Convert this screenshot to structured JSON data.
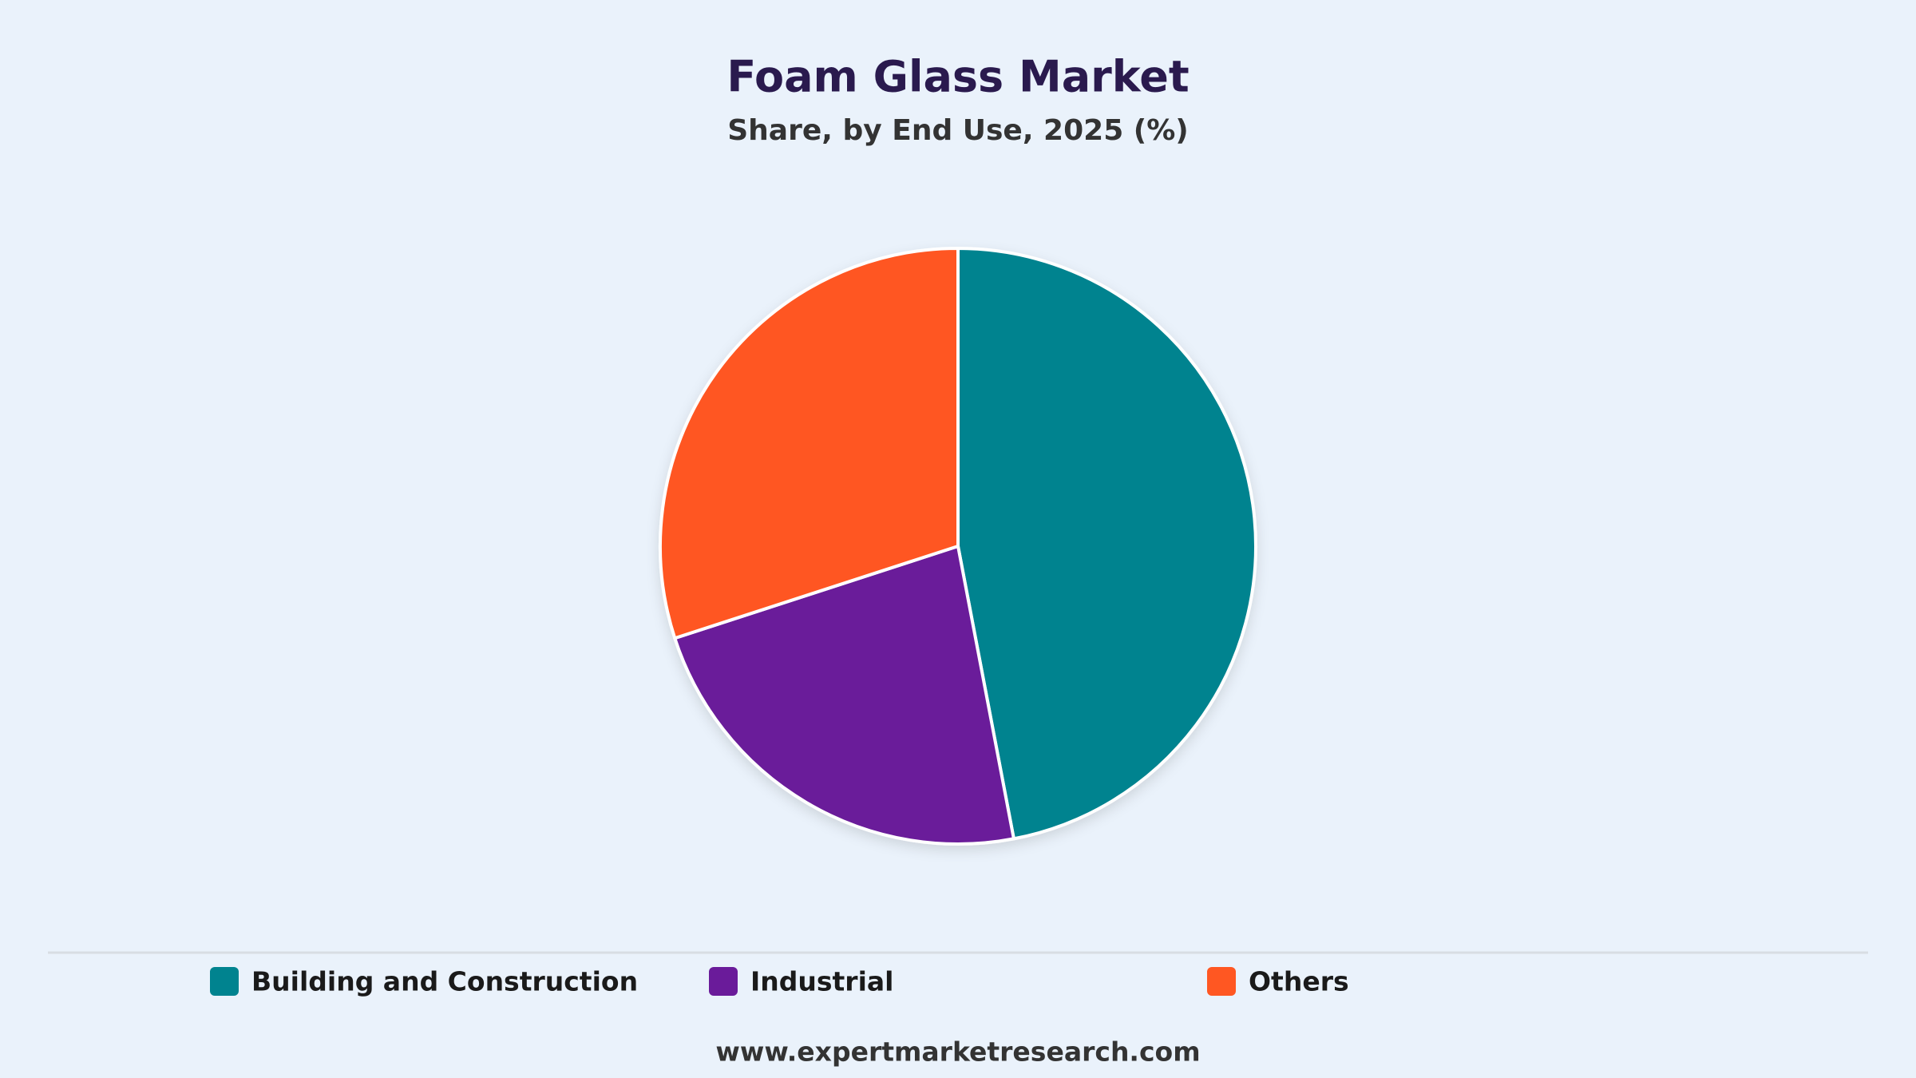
{
  "chart_data": {
    "type": "pie",
    "title": "Foam Glass Market",
    "subtitle": "Share, by End Use, 2025 (%)",
    "categories": [
      "Building and Construction",
      "Industrial",
      "Others"
    ],
    "values": [
      47,
      23,
      30
    ],
    "colors": [
      "#00838f",
      "#6a1b9a",
      "#ff5722"
    ],
    "source": "www.expertmarketresearch.com"
  }
}
